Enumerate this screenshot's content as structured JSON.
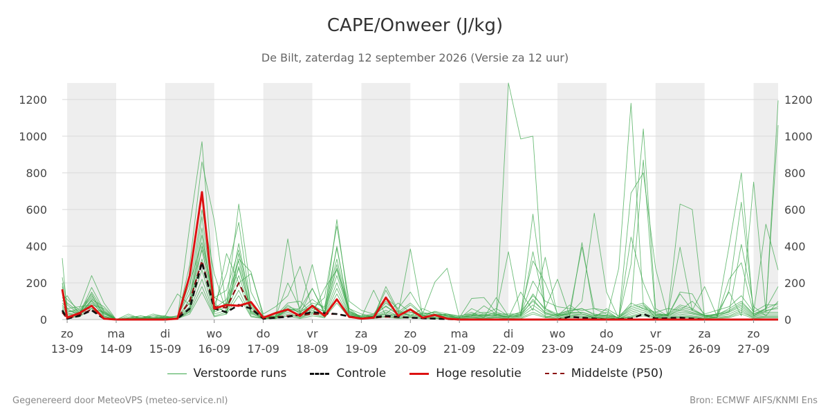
{
  "chart_data": {
    "type": "line",
    "title": "CAPE/Onweer (J/kg)",
    "subtitle": "De Bilt, zaterdag 12 september 2026 (Versie za 12 uur)",
    "ylim": [
      0,
      1290
    ],
    "xlim_days": [
      12.9,
      28.5
    ],
    "y_ticks": [
      0,
      200,
      400,
      600,
      800,
      1000,
      1200
    ],
    "y_tick_labels": [
      "0",
      "200",
      "400",
      "600",
      "800",
      "1000",
      "1200"
    ],
    "x_ticks": [
      {
        "day_label": "zo",
        "date_label": "13-09"
      },
      {
        "day_label": "ma",
        "date_label": "14-09"
      },
      {
        "day_label": "di",
        "date_label": "15-09"
      },
      {
        "day_label": "wo",
        "date_label": "16-09"
      },
      {
        "day_label": "do",
        "date_label": "17-09"
      },
      {
        "day_label": "vr",
        "date_label": "18-09"
      },
      {
        "day_label": "za",
        "date_label": "19-09"
      },
      {
        "day_label": "zo",
        "date_label": "20-09"
      },
      {
        "day_label": "ma",
        "date_label": "21-09"
      },
      {
        "day_label": "di",
        "date_label": "22-09"
      },
      {
        "day_label": "wo",
        "date_label": "23-09"
      },
      {
        "day_label": "do",
        "date_label": "24-09"
      },
      {
        "day_label": "vr",
        "date_label": "25-09"
      },
      {
        "day_label": "za",
        "date_label": "26-09"
      },
      {
        "day_label": "zo",
        "date_label": "27-09"
      }
    ],
    "night_bands_days": [
      [
        13.0,
        14.0
      ],
      [
        15.0,
        16.0
      ],
      [
        17.0,
        18.0
      ],
      [
        19.0,
        20.0
      ],
      [
        21.0,
        22.0
      ],
      [
        23.0,
        24.0
      ],
      [
        25.0,
        26.0
      ],
      [
        27.0,
        27.5
      ]
    ],
    "grid": true,
    "legend_position": "bottom-center",
    "series": [
      {
        "name": "Hoge resolutie",
        "color": "#dd1111",
        "style": "solid",
        "x": [
          12.9,
          13.0,
          13.25,
          13.5,
          13.75,
          14.0,
          14.5,
          15.0,
          15.25,
          15.5,
          15.75,
          16.0,
          16.25,
          16.5,
          16.75,
          17.0,
          17.25,
          17.5,
          17.75,
          18.0,
          18.25,
          18.5,
          18.75,
          19.0,
          19.25,
          19.5,
          19.75,
          20.0,
          20.25,
          20.5,
          20.75,
          21.0,
          22.0,
          23.0,
          24.0,
          25.0,
          26.0,
          27.0,
          27.5
        ],
        "y": [
          165,
          10,
          35,
          75,
          5,
          0,
          0,
          0,
          5,
          240,
          695,
          60,
          80,
          75,
          95,
          10,
          35,
          55,
          20,
          75,
          20,
          110,
          15,
          5,
          10,
          120,
          20,
          55,
          10,
          25,
          5,
          0,
          0,
          0,
          0,
          0,
          0,
          0,
          0
        ]
      },
      {
        "name": "Controle",
        "color": "#111111",
        "style": "dashed",
        "x": [
          12.9,
          13.0,
          13.25,
          13.5,
          13.75,
          14.0,
          15.0,
          15.25,
          15.5,
          15.75,
          16.0,
          16.25,
          16.5,
          16.75,
          17.0,
          17.5,
          18.0,
          18.5,
          19.0,
          19.5,
          20.0,
          21.0,
          22.0,
          23.0,
          23.25,
          24.0,
          24.5,
          24.75,
          25.0,
          25.5,
          26.0,
          27.0,
          27.5
        ],
        "y": [
          50,
          5,
          20,
          50,
          5,
          0,
          0,
          5,
          60,
          310,
          60,
          40,
          80,
          60,
          5,
          15,
          40,
          30,
          5,
          20,
          10,
          0,
          0,
          0,
          15,
          0,
          5,
          30,
          5,
          10,
          0,
          0,
          0
        ]
      },
      {
        "name": "Middelste (P50)",
        "color": "#8b1010",
        "style": "dashed",
        "x": [
          12.9,
          13.0,
          13.25,
          13.5,
          13.75,
          14.0,
          15.0,
          15.25,
          15.5,
          15.75,
          16.0,
          16.25,
          16.5,
          16.75,
          17.0,
          17.5,
          18.0,
          18.5,
          19.0,
          19.5,
          20.0,
          21.0,
          22.0,
          23.0,
          24.0,
          25.0,
          26.0,
          27.0,
          27.5
        ],
        "y": [
          40,
          5,
          25,
          55,
          5,
          0,
          0,
          5,
          100,
          320,
          70,
          65,
          200,
          60,
          5,
          20,
          30,
          30,
          5,
          15,
          10,
          0,
          0,
          0,
          0,
          0,
          0,
          0,
          0
        ]
      }
    ],
    "ensemble": {
      "name": "Verstoorde runs",
      "color": "#3aa64a",
      "x": [
        12.9,
        13.0,
        13.25,
        13.5,
        13.75,
        14.0,
        14.25,
        14.5,
        14.75,
        15.0,
        15.25,
        15.5,
        15.75,
        16.0,
        16.25,
        16.5,
        16.75,
        17.0,
        17.25,
        17.5,
        17.75,
        18.0,
        18.25,
        18.5,
        18.75,
        19.0,
        19.25,
        19.5,
        19.75,
        20.0,
        20.25,
        20.5,
        20.75,
        21.0,
        21.25,
        21.5,
        21.75,
        22.0,
        22.25,
        22.5,
        22.75,
        23.0,
        23.25,
        23.5,
        23.75,
        24.0,
        24.25,
        24.5,
        24.75,
        25.0,
        25.25,
        25.5,
        25.75,
        26.0,
        26.25,
        26.5,
        26.75,
        27.0,
        27.25,
        27.5
      ],
      "runs": [
        [
          335,
          40,
          60,
          240,
          90,
          0,
          5,
          10,
          5,
          10,
          5,
          510,
          970,
          120,
          80,
          630,
          150,
          20,
          15,
          440,
          30,
          170,
          40,
          545,
          60,
          10,
          160,
          20,
          30,
          385,
          20,
          45,
          30,
          5,
          60,
          30,
          20,
          1290,
          985,
          1000,
          10,
          30,
          20,
          30,
          10,
          5,
          280,
          1180,
          80,
          10,
          30,
          630,
          600,
          10,
          30,
          150,
          20,
          750,
          40,
          1195
        ],
        [
          230,
          80,
          30,
          175,
          50,
          0,
          10,
          20,
          10,
          20,
          5,
          300,
          860,
          540,
          60,
          415,
          70,
          10,
          15,
          200,
          60,
          300,
          20,
          400,
          30,
          20,
          15,
          180,
          50,
          20,
          30,
          205,
          280,
          10,
          115,
          120,
          40,
          370,
          20,
          575,
          60,
          220,
          20,
          420,
          20,
          40,
          5,
          690,
          800,
          280,
          20,
          395,
          50,
          180,
          20,
          400,
          800,
          20,
          60,
          1060
        ],
        [
          180,
          60,
          20,
          110,
          70,
          0,
          20,
          10,
          20,
          20,
          140,
          80,
          500,
          40,
          360,
          200,
          250,
          30,
          70,
          130,
          290,
          60,
          120,
          510,
          100,
          50,
          30,
          120,
          60,
          150,
          40,
          25,
          30,
          15,
          40,
          10,
          120,
          20,
          40,
          320,
          200,
          30,
          50,
          395,
          60,
          50,
          5,
          300,
          1040,
          60,
          20,
          140,
          50,
          20,
          10,
          220,
          310,
          30,
          60,
          180
        ],
        [
          140,
          110,
          50,
          140,
          20,
          0,
          30,
          5,
          30,
          15,
          15,
          170,
          600,
          250,
          40,
          330,
          260,
          15,
          20,
          90,
          100,
          30,
          170,
          270,
          40,
          10,
          20,
          30,
          90,
          40,
          30,
          40,
          20,
          10,
          20,
          75,
          30,
          10,
          150,
          50,
          340,
          20,
          30,
          100,
          580,
          150,
          5,
          450,
          200,
          40,
          20,
          150,
          140,
          20,
          10,
          160,
          640,
          40,
          520,
          270
        ],
        [
          120,
          90,
          40,
          130,
          40,
          0,
          10,
          20,
          10,
          5,
          10,
          110,
          560,
          80,
          250,
          530,
          70,
          10,
          15,
          50,
          60,
          170,
          30,
          280,
          60,
          30,
          15,
          160,
          40,
          20,
          60,
          30,
          10,
          10,
          20,
          30,
          60,
          20,
          20,
          370,
          60,
          20,
          80,
          30,
          10,
          60,
          20,
          75,
          870,
          20,
          30,
          80,
          60,
          20,
          30,
          40,
          410,
          70,
          20,
          100
        ],
        [
          100,
          130,
          30,
          90,
          30,
          0,
          5,
          5,
          20,
          10,
          20,
          200,
          420,
          120,
          160,
          380,
          80,
          10,
          30,
          60,
          40,
          90,
          70,
          390,
          50,
          10,
          20,
          90,
          40,
          90,
          30,
          40,
          20,
          10,
          30,
          40,
          30,
          30,
          30,
          210,
          100,
          70,
          60,
          50,
          60,
          30,
          10,
          90,
          60,
          40,
          60,
          50,
          100,
          30,
          50,
          70,
          130,
          40,
          80,
          80
        ],
        [
          90,
          60,
          70,
          80,
          60,
          0,
          10,
          10,
          10,
          10,
          20,
          140,
          380,
          60,
          110,
          320,
          60,
          10,
          10,
          80,
          30,
          80,
          40,
          240,
          40,
          20,
          30,
          70,
          30,
          60,
          20,
          20,
          30,
          20,
          30,
          20,
          40,
          20,
          40,
          130,
          60,
          30,
          50,
          60,
          30,
          20,
          10,
          60,
          80,
          30,
          20,
          60,
          40,
          20,
          30,
          50,
          90,
          30,
          50,
          60
        ],
        [
          80,
          40,
          50,
          60,
          40,
          0,
          5,
          5,
          10,
          5,
          10,
          90,
          330,
          50,
          90,
          280,
          50,
          5,
          10,
          60,
          20,
          60,
          30,
          200,
          30,
          10,
          20,
          50,
          20,
          40,
          15,
          15,
          20,
          10,
          20,
          15,
          30,
          15,
          30,
          100,
          40,
          20,
          40,
          40,
          20,
          15,
          5,
          40,
          60,
          20,
          15,
          40,
          30,
          15,
          20,
          40,
          70,
          20,
          40,
          40
        ],
        [
          70,
          30,
          40,
          120,
          30,
          0,
          5,
          5,
          10,
          5,
          10,
          70,
          270,
          40,
          70,
          240,
          40,
          5,
          10,
          50,
          15,
          50,
          20,
          170,
          25,
          10,
          15,
          40,
          15,
          30,
          10,
          10,
          15,
          10,
          15,
          10,
          20,
          10,
          20,
          80,
          30,
          15,
          30,
          30,
          15,
          10,
          5,
          30,
          50,
          15,
          10,
          30,
          20,
          10,
          15,
          30,
          60,
          15,
          30,
          30
        ],
        [
          60,
          20,
          30,
          100,
          20,
          0,
          5,
          5,
          10,
          5,
          10,
          50,
          220,
          30,
          50,
          200,
          30,
          5,
          10,
          40,
          10,
          40,
          15,
          140,
          20,
          10,
          10,
          30,
          10,
          20,
          10,
          10,
          10,
          5,
          10,
          10,
          15,
          10,
          15,
          60,
          20,
          10,
          20,
          20,
          10,
          10,
          5,
          20,
          40,
          10,
          10,
          20,
          15,
          10,
          10,
          20,
          50,
          10,
          20,
          20
        ],
        [
          50,
          15,
          20,
          80,
          15,
          0,
          5,
          5,
          5,
          5,
          5,
          40,
          180,
          20,
          40,
          160,
          20,
          5,
          5,
          30,
          10,
          30,
          10,
          110,
          15,
          5,
          10,
          20,
          10,
          15,
          5,
          5,
          10,
          5,
          10,
          5,
          10,
          5,
          10,
          40,
          15,
          10,
          15,
          15,
          10,
          5,
          5,
          15,
          30,
          10,
          5,
          15,
          10,
          5,
          10,
          15,
          40,
          10,
          15,
          15
        ],
        [
          40,
          10,
          15,
          60,
          10,
          0,
          5,
          5,
          5,
          5,
          5,
          30,
          150,
          15,
          30,
          130,
          15,
          5,
          5,
          20,
          5,
          20,
          10,
          90,
          10,
          5,
          5,
          15,
          5,
          10,
          5,
          5,
          5,
          5,
          5,
          5,
          10,
          5,
          5,
          30,
          10,
          5,
          10,
          10,
          5,
          5,
          5,
          10,
          20,
          5,
          5,
          10,
          10,
          5,
          5,
          10,
          30,
          5,
          10,
          10
        ],
        [
          200,
          30,
          25,
          150,
          45,
          0,
          5,
          10,
          5,
          15,
          5,
          60,
          460,
          70,
          40,
          290,
          45,
          10,
          20,
          70,
          50,
          110,
          60,
          330,
          45,
          15,
          25,
          100,
          30,
          80,
          25,
          30,
          25,
          10,
          25,
          25,
          25,
          15,
          25,
          140,
          50,
          25,
          45,
          60,
          25,
          25,
          10,
          70,
          90,
          30,
          25,
          70,
          50,
          25,
          25,
          60,
          100,
          30,
          60,
          90
        ],
        [
          160,
          50,
          35,
          105,
          35,
          0,
          5,
          10,
          5,
          10,
          5,
          45,
          400,
          90,
          30,
          360,
          35,
          10,
          15,
          60,
          45,
          70,
          45,
          300,
          35,
          10,
          20,
          75,
          25,
          55,
          20,
          25,
          20,
          10,
          20,
          20,
          25,
          10,
          20,
          110,
          35,
          20,
          35,
          40,
          20,
          20,
          10,
          50,
          70,
          25,
          20,
          50,
          35,
          20,
          20,
          45,
          80,
          25,
          45,
          70
        ]
      ]
    },
    "legend_entries": [
      {
        "label": "Verstoorde runs",
        "color": "#3aa64a",
        "style": "thin"
      },
      {
        "label": "Controle",
        "color": "#111111",
        "style": "dashed"
      },
      {
        "label": "Hoge resolutie",
        "color": "#dd1111",
        "style": "solid"
      },
      {
        "label": "Middelste (P50)",
        "color": "#8b1010",
        "style": "dashed"
      }
    ]
  },
  "footer": {
    "left": "Gegenereerd door MeteoVPS (meteo-service.nl)",
    "right": "Bron: ECMWF AIFS/KNMI Ens"
  }
}
